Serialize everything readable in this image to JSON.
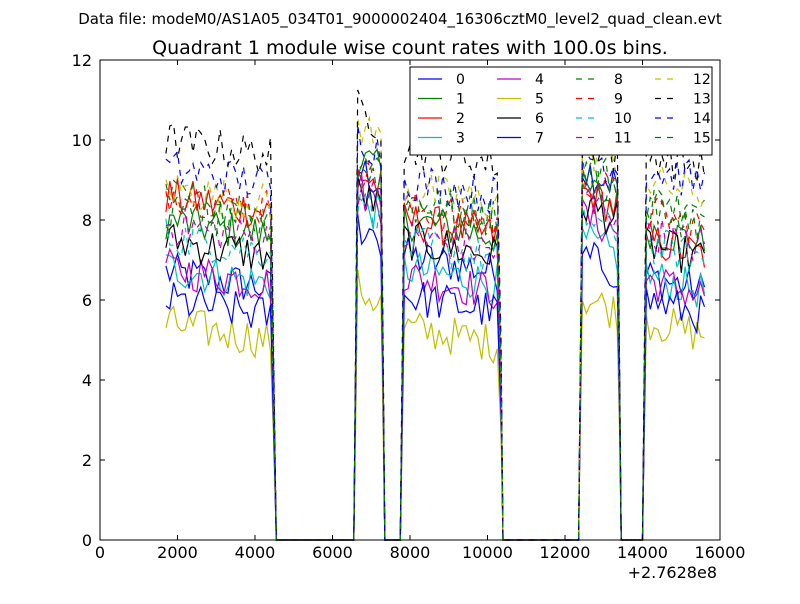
{
  "header": "Data file: modeM0/AS1A05_034T01_9000002404_16306cztM0_level2_quad_clean.evt",
  "chart_data": {
    "type": "line",
    "title": "Quadrant 1 module wise count rates with 100.0s bins.",
    "xlabel": "",
    "ylabel": "",
    "x_offset_label": "+2.7628e8",
    "xlim": [
      0,
      16000
    ],
    "ylim": [
      0,
      12
    ],
    "xticks": [
      0,
      2000,
      4000,
      6000,
      8000,
      10000,
      12000,
      14000,
      16000
    ],
    "yticks": [
      0,
      2,
      4,
      6,
      8,
      10,
      12
    ],
    "grid": false,
    "legend_placement": "top-right",
    "legend_columns": 4,
    "segments": [
      [
        1700,
        4400
      ],
      [
        6650,
        7250
      ],
      [
        7850,
        10300
      ],
      [
        12450,
        13350
      ],
      [
        14100,
        15650
      ]
    ],
    "gaps": [
      [
        4550,
        6550
      ],
      [
        7350,
        7750
      ],
      [
        10400,
        12350
      ],
      [
        13450,
        14000
      ]
    ],
    "series": [
      {
        "name": "0",
        "color": "#0000ff",
        "style": "solid",
        "levels": [
          6.7,
          9.3,
          7.1,
          9.3,
          6.6
        ]
      },
      {
        "name": "1",
        "color": "#008000",
        "style": "solid",
        "levels": [
          8.0,
          9.6,
          8.0,
          8.8,
          7.8
        ]
      },
      {
        "name": "2",
        "color": "#ff0000",
        "style": "solid",
        "levels": [
          8.6,
          9.2,
          8.0,
          8.7,
          7.5
        ]
      },
      {
        "name": "3",
        "color": "#00bfbf",
        "style": "solid",
        "levels": [
          6.8,
          8.5,
          6.8,
          7.5,
          6.6
        ]
      },
      {
        "name": "4",
        "color": "#bf00bf",
        "style": "solid",
        "levels": [
          6.8,
          8.8,
          6.6,
          8.1,
          6.5
        ]
      },
      {
        "name": "5",
        "color": "#bfbf00",
        "style": "solid",
        "levels": [
          5.4,
          6.3,
          5.3,
          6.1,
          5.5
        ]
      },
      {
        "name": "6",
        "color": "#000000",
        "style": "solid",
        "levels": [
          7.5,
          8.7,
          7.5,
          8.4,
          7.4
        ]
      },
      {
        "name": "7",
        "color": "#0000ff",
        "style": "solid",
        "levels": [
          6.0,
          7.9,
          6.1,
          7.1,
          6.0
        ]
      },
      {
        "name": "8",
        "color": "#008000",
        "style": "dashed",
        "levels": [
          8.6,
          9.7,
          8.5,
          9.4,
          8.5
        ]
      },
      {
        "name": "9",
        "color": "#ff0000",
        "style": "dashed",
        "levels": [
          8.7,
          9.3,
          8.3,
          9.0,
          8.2
        ]
      },
      {
        "name": "10",
        "color": "#00bfbf",
        "style": "dashed",
        "levels": [
          7.6,
          8.6,
          7.4,
          8.1,
          7.4
        ]
      },
      {
        "name": "11",
        "color": "#bf00bf",
        "style": "dashed",
        "levels": [
          7.9,
          8.8,
          7.6,
          8.6,
          7.7
        ]
      },
      {
        "name": "12",
        "color": "#bfbf00",
        "style": "dashed",
        "levels": [
          8.8,
          10.4,
          8.8,
          9.8,
          9.0
        ]
      },
      {
        "name": "13",
        "color": "#000000",
        "style": "dashed",
        "levels": [
          10.0,
          10.8,
          9.8,
          10.0,
          9.7
        ]
      },
      {
        "name": "14",
        "color": "#0000ff",
        "style": "dashed",
        "levels": [
          9.3,
          10.1,
          9.0,
          9.7,
          9.3
        ]
      },
      {
        "name": "15",
        "color": "#008000",
        "style": "dashed",
        "levels": [
          8.2,
          9.4,
          8.4,
          9.1,
          8.3
        ]
      }
    ]
  }
}
